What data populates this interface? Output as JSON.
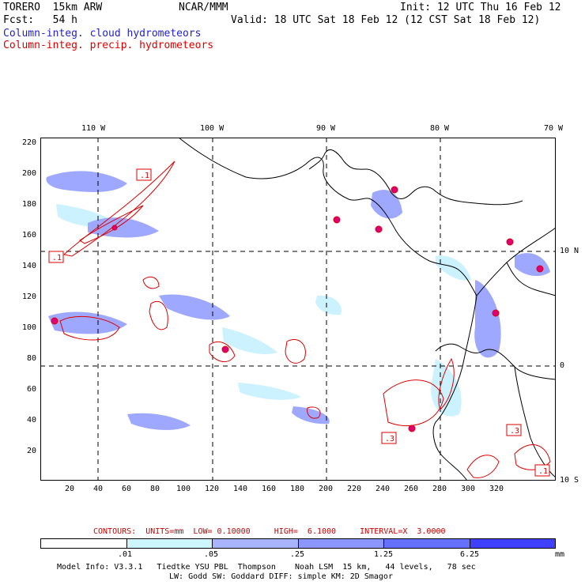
{
  "header": {
    "model": "TORERO  15km ARW",
    "org": "NCAR/MMM",
    "init": "Init: 12 UTC Thu 16 Feb 12",
    "fcst": "Fcst:   54 h",
    "valid": "Valid: 18 UTC Sat 18 Feb 12 (12 CST Sat 18 Feb 12)"
  },
  "legend": {
    "cloud": "Column-integ. cloud hydrometeors",
    "precip": "Column-integ. precip. hydrometeors"
  },
  "map": {
    "lon_labels": [
      "110 W",
      "100 W",
      "90 W",
      "80 W",
      "70 W"
    ],
    "lat_labels_right": [
      "10 N",
      "0",
      "10 S"
    ],
    "x_ticks": [
      "20",
      "40",
      "60",
      "80",
      "100",
      "120",
      "140",
      "160",
      "180",
      "200",
      "220",
      "240",
      "260",
      "280",
      "300",
      "320"
    ],
    "y_ticks": [
      "220",
      "200",
      "180",
      "160",
      "140",
      "120",
      "100",
      "80",
      "60",
      "40",
      "20"
    ],
    "contour_labels": [
      ".1",
      ".1",
      ".3",
      ".3",
      ".1"
    ],
    "colors": {
      "land_outline": "#000000",
      "cloud_light": "#ccf2ff",
      "cloud_mid": "#9fa8ff",
      "cloud_dark": "#6666ff",
      "precip_contour": "#dd0000"
    }
  },
  "contour_info": "CONTOURS:  UNITS=mm  LOW= 0.10000     HIGH=  6.1000     INTERVAL=X  3.0000",
  "colorbar": {
    "labels": [
      ".01",
      ".05",
      ".25",
      "1.25",
      "6.25"
    ],
    "unit": "mm",
    "colors": [
      "#ffffff",
      "#ccf5ff",
      "#a8b4ff",
      "#8c96ff",
      "#6670ff",
      "#4040ff"
    ]
  },
  "footer": {
    "line1": "Model Info: V3.3.1   Tiedtke YSU PBL  Thompson    Noah LSM  15 km,   44 levels,   78 sec",
    "line2": "LW: Godd SW: Goddard DIFF: simple KM: 2D Smagor"
  }
}
